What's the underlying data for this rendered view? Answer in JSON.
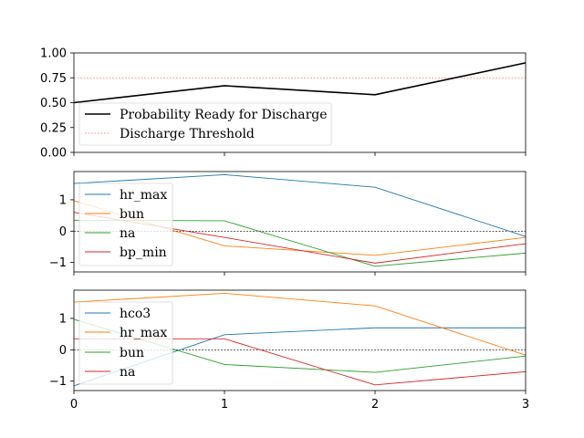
{
  "chart_data": [
    {
      "type": "line",
      "x": [
        0,
        1,
        2,
        3
      ],
      "xlim": [
        0,
        3
      ],
      "ylim": [
        0,
        1
      ],
      "yticks": [
        "0.00",
        "0.25",
        "0.50",
        "0.75",
        "1.00"
      ],
      "yticks_values": [
        0,
        0.25,
        0.5,
        0.75,
        1.0
      ],
      "series": [
        {
          "name": "Probability Ready for Discharge",
          "values": [
            0.5,
            0.67,
            0.58,
            0.9
          ],
          "color": "#000000",
          "style": "solid"
        }
      ],
      "threshold": {
        "name": "Discharge Threshold",
        "value": 0.75,
        "color": "#ff7f7f",
        "style": "dashed"
      },
      "legend": "lower-left",
      "title": "",
      "xlabel": "",
      "ylabel": ""
    },
    {
      "type": "line",
      "x": [
        0,
        1,
        2,
        3
      ],
      "xlim": [
        0,
        3
      ],
      "ylim": [
        -1.3,
        1.9
      ],
      "yticks": [
        "−1",
        "0",
        "1"
      ],
      "yticks_values": [
        -1,
        0,
        1
      ],
      "series": [
        {
          "name": "hr_max",
          "values": [
            1.52,
            1.8,
            1.4,
            -0.17
          ],
          "color": "#1f77b4"
        },
        {
          "name": "bun",
          "values": [
            0.97,
            -0.47,
            -0.77,
            -0.2
          ],
          "color": "#ff7f0e"
        },
        {
          "name": "na",
          "values": [
            0.35,
            0.33,
            -1.12,
            -0.7
          ],
          "color": "#2ca02c"
        },
        {
          "name": "bp_min",
          "values": [
            0.6,
            -0.2,
            -1.02,
            -0.4
          ],
          "color": "#d62728"
        }
      ],
      "zero_line": true,
      "legend": "lower-left",
      "title": "",
      "xlabel": "",
      "ylabel": ""
    },
    {
      "type": "line",
      "x": [
        0,
        1,
        2,
        3
      ],
      "xlim": [
        0,
        3
      ],
      "ylim": [
        -1.3,
        1.9
      ],
      "xticks": [
        "0",
        "1",
        "2",
        "3"
      ],
      "yticks": [
        "−1",
        "0",
        "1"
      ],
      "yticks_values": [
        -1,
        0,
        1
      ],
      "series": [
        {
          "name": "hco3",
          "values": [
            -1.15,
            0.48,
            0.7,
            0.7
          ],
          "color": "#1f77b4"
        },
        {
          "name": "hr_max",
          "values": [
            1.52,
            1.8,
            1.4,
            -0.17
          ],
          "color": "#ff7f0e"
        },
        {
          "name": "bun",
          "values": [
            0.97,
            -0.47,
            -0.72,
            -0.2
          ],
          "color": "#2ca02c"
        },
        {
          "name": "na",
          "values": [
            0.35,
            0.35,
            -1.12,
            -0.7
          ],
          "color": "#d62728"
        }
      ],
      "zero_line": true,
      "legend": "lower-left",
      "title": "",
      "xlabel": "",
      "ylabel": ""
    }
  ]
}
